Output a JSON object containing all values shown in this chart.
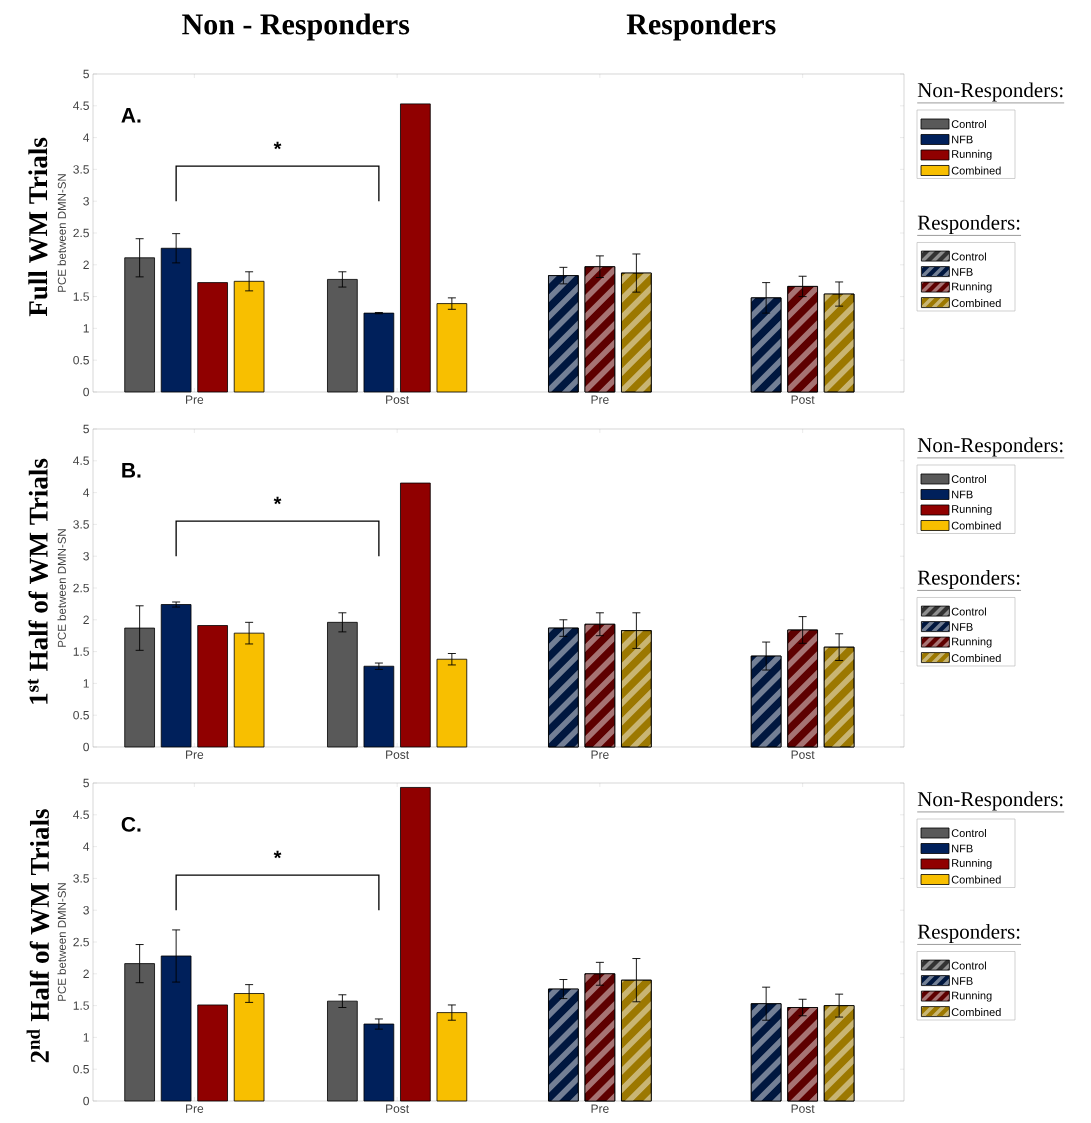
{
  "chart_data": [
    {
      "type": "bar",
      "title": "Full WM Trials",
      "ylabel": "PCE between DMN-SN",
      "categories": [
        "Pre",
        "Post",
        "Pre",
        "Post"
      ],
      "ylim": [
        0,
        5
      ],
      "yticks": [
        0,
        0.5,
        1,
        1.5,
        2,
        2.5,
        3,
        3.5,
        4,
        4.5,
        5
      ],
      "legend": "right",
      "annotations": [
        "A.",
        "*",
        "Non-Responders:",
        "Responders:",
        "Non - Responders",
        "Responders"
      ],
      "series": [
        {
          "name": "Control",
          "color": "#595959",
          "values": [
            2.11,
            1.77,
            null,
            null
          ],
          "errors": [
            0.3,
            0.12,
            null,
            null
          ]
        },
        {
          "name": "NFB",
          "color": "#00205b",
          "values": [
            2.26,
            1.24,
            null,
            null
          ],
          "errors": [
            0.23,
            0.01,
            null,
            null
          ]
        },
        {
          "name": "Running",
          "color": "#900000",
          "values": [
            1.72,
            4.53,
            null,
            null
          ],
          "errors": [
            null,
            null,
            null,
            null
          ]
        },
        {
          "name": "Combined",
          "color": "#f8bf00",
          "values": [
            1.74,
            1.39,
            null,
            null
          ],
          "errors": [
            0.15,
            0.09,
            null,
            null
          ]
        },
        {
          "name": "Control",
          "color": "#333333",
          "values": [
            null,
            null,
            null,
            null
          ],
          "errors": [
            null,
            null,
            null,
            null
          ]
        },
        {
          "name": "NFB",
          "color": "#00173f",
          "values": [
            null,
            null,
            1.83,
            1.48
          ],
          "errors": [
            null,
            null,
            0.13,
            0.24
          ]
        },
        {
          "name": "Running",
          "color": "#5e0000",
          "values": [
            null,
            null,
            1.97,
            1.66
          ],
          "errors": [
            null,
            null,
            0.17,
            0.16
          ]
        },
        {
          "name": "Combined",
          "color": "#9c7800",
          "values": [
            null,
            null,
            1.87,
            1.54
          ],
          "errors": [
            null,
            null,
            0.3,
            0.19
          ]
        }
      ]
    },
    {
      "type": "bar",
      "title": "1$^{st}$ Half of WM Trials",
      "ylabel": "PCE between DMN-SN",
      "categories": [
        "Pre",
        "Post",
        "Pre",
        "Post"
      ],
      "ylim": [
        0,
        5
      ],
      "yticks": [
        0,
        0.5,
        1,
        1.5,
        2,
        2.5,
        3,
        3.5,
        4,
        4.5,
        5
      ],
      "legend": "right",
      "annotations": [
        "B.",
        "*",
        "Non-Responders:",
        "Responders:"
      ],
      "series": [
        {
          "name": "Control",
          "color": "#595959",
          "values": [
            1.87,
            1.96,
            null,
            null
          ],
          "errors": [
            0.35,
            0.15,
            null,
            null
          ]
        },
        {
          "name": "NFB",
          "color": "#00205b",
          "values": [
            2.24,
            1.27,
            null,
            null
          ],
          "errors": [
            0.04,
            0.05,
            null,
            null
          ]
        },
        {
          "name": "Running",
          "color": "#900000",
          "values": [
            1.91,
            4.15,
            null,
            null
          ],
          "errors": [
            null,
            null,
            null,
            null
          ]
        },
        {
          "name": "Combined",
          "color": "#f8bf00",
          "values": [
            1.79,
            1.38,
            null,
            null
          ],
          "errors": [
            0.17,
            0.09,
            null,
            null
          ]
        },
        {
          "name": "Control",
          "color": "#333333",
          "values": [
            null,
            null,
            null,
            null
          ],
          "errors": [
            null,
            null,
            null,
            null
          ]
        },
        {
          "name": "NFB",
          "color": "#00173f",
          "values": [
            null,
            null,
            1.87,
            1.43
          ],
          "errors": [
            null,
            null,
            0.13,
            0.22
          ]
        },
        {
          "name": "Running",
          "color": "#5e0000",
          "values": [
            null,
            null,
            1.93,
            1.84
          ],
          "errors": [
            null,
            null,
            0.18,
            0.21
          ]
        },
        {
          "name": "Combined",
          "color": "#9c7800",
          "values": [
            null,
            null,
            1.83,
            1.57
          ],
          "errors": [
            null,
            null,
            0.28,
            0.21
          ]
        }
      ]
    },
    {
      "type": "bar",
      "title": "2$^{nd}$ Half of WM Trials",
      "ylabel": "PCE between DMN-SN",
      "categories": [
        "Pre",
        "Post",
        "Pre",
        "Post"
      ],
      "ylim": [
        0,
        5
      ],
      "yticks": [
        0,
        0.5,
        1,
        1.5,
        2,
        2.5,
        3,
        3.5,
        4,
        4.5,
        5
      ],
      "legend": "right",
      "annotations": [
        "C.",
        "*",
        "Non-Responders:",
        "Responders:"
      ],
      "series": [
        {
          "name": "Control",
          "color": "#595959",
          "values": [
            2.16,
            1.57,
            null,
            null
          ],
          "errors": [
            0.3,
            0.1,
            null,
            null
          ]
        },
        {
          "name": "NFB",
          "color": "#00205b",
          "values": [
            2.28,
            1.21,
            null,
            null
          ],
          "errors": [
            0.41,
            0.08,
            null,
            null
          ]
        },
        {
          "name": "Running",
          "color": "#900000",
          "values": [
            1.51,
            4.93,
            null,
            null
          ],
          "errors": [
            null,
            null,
            null,
            null
          ]
        },
        {
          "name": "Combined",
          "color": "#f8bf00",
          "values": [
            1.69,
            1.39,
            null,
            null
          ],
          "errors": [
            0.14,
            0.12,
            null,
            null
          ]
        },
        {
          "name": "Control",
          "color": "#333333",
          "values": [
            null,
            null,
            null,
            null
          ],
          "errors": [
            null,
            null,
            null,
            null
          ]
        },
        {
          "name": "NFB",
          "color": "#00173f",
          "values": [
            null,
            null,
            1.76,
            1.53
          ],
          "errors": [
            null,
            null,
            0.15,
            0.26
          ]
        },
        {
          "name": "Running",
          "color": "#5e0000",
          "values": [
            null,
            null,
            2.0,
            1.47
          ],
          "errors": [
            null,
            null,
            0.18,
            0.13
          ]
        },
        {
          "name": "Combined",
          "color": "#9c7800",
          "values": [
            null,
            null,
            1.9,
            1.5
          ],
          "errors": [
            null,
            null,
            0.34,
            0.18
          ]
        }
      ]
    }
  ]
}
